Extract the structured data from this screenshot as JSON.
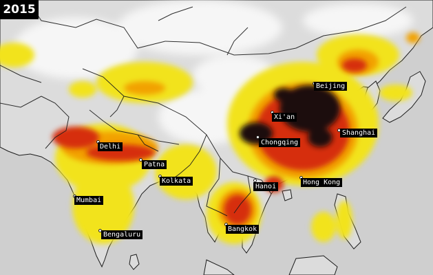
{
  "year": "2015",
  "cities": [
    {
      "key": "beijing",
      "name": "Beijing"
    },
    {
      "key": "xian",
      "name": "Xi'an"
    },
    {
      "key": "shanghai",
      "name": "Shanghai"
    },
    {
      "key": "chongqing",
      "name": "Chongqing"
    },
    {
      "key": "delhi",
      "name": "Delhi"
    },
    {
      "key": "patna",
      "name": "Patna"
    },
    {
      "key": "kolkata",
      "name": "Kolkata"
    },
    {
      "key": "hanoi",
      "name": "Hanoi"
    },
    {
      "key": "hong-kong",
      "name": "Hong Kong"
    },
    {
      "key": "mumbai",
      "name": "Mumbai"
    },
    {
      "key": "bangkok",
      "name": "Bangkok"
    },
    {
      "key": "bengaluru",
      "name": "Bengaluru"
    }
  ],
  "colors": {
    "ocean": "#cfcfcf",
    "land": "#d9d9d9",
    "clean": "#f4f4f4",
    "yellow": "#f2e31c",
    "orange": "#f2a200",
    "red": "#d62e0c",
    "dark": "#1c0c08",
    "border": "#1a1a1a"
  }
}
